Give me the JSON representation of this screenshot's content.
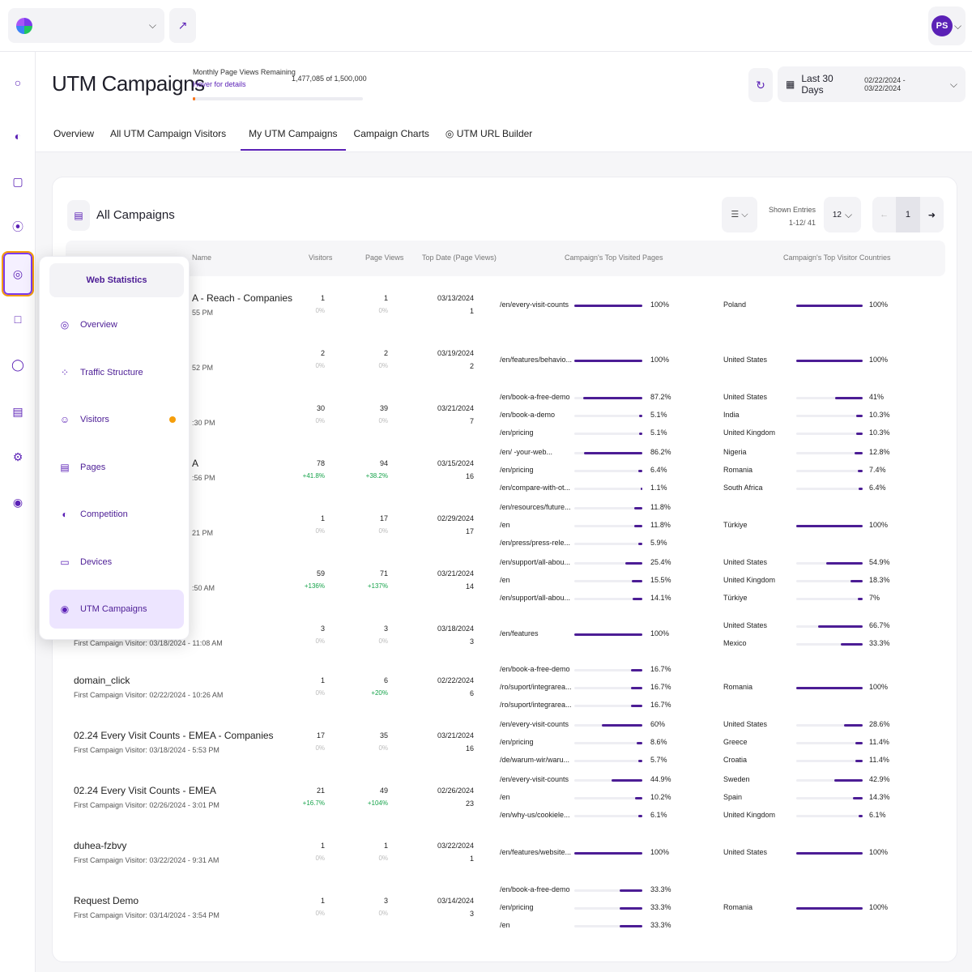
{
  "topbar": {
    "user_initials": "PS"
  },
  "header": {
    "title": "UTM Campaigns",
    "pageviews_label": "Monthly Page Views Remaining",
    "pageviews_hover": "Hover for details",
    "pageviews_value": "1,477,085 of 1,500,000",
    "pageviews_used_fraction": 0.0153,
    "date_label": "Last 30 Days",
    "date_range": "02/22/2024 - 03/22/2024"
  },
  "tabs": [
    {
      "label": "Overview"
    },
    {
      "label": "All UTM Campaign Visitors"
    },
    {
      "label": "My UTM Campaigns"
    },
    {
      "label": "Campaign Charts"
    },
    {
      "label": "UTM URL Builder"
    }
  ],
  "card": {
    "title": "All Campaigns",
    "shown_label": "Shown Entries",
    "shown_range": "1-12/ 41",
    "entries": "12",
    "page": "1"
  },
  "columns": {
    "name": "Name",
    "visitors": "Visitors",
    "pageviews": "Page Views",
    "topdate": "Top Date (Page Views)",
    "pages": "Campaign's Top Visited Pages",
    "countries": "Campaign's Top Visitor Countries"
  },
  "dropdown": {
    "header": "Web Statistics",
    "items": [
      {
        "label": "Overview",
        "icon": "target-icon"
      },
      {
        "label": "Traffic Structure",
        "icon": "network-icon"
      },
      {
        "label": "Visitors",
        "icon": "person-icon"
      },
      {
        "label": "Pages",
        "icon": "pages-icon"
      },
      {
        "label": "Competition",
        "icon": "competition-icon"
      },
      {
        "label": "Devices",
        "icon": "monitor-icon"
      },
      {
        "label": "UTM Campaigns",
        "icon": "utm-icon"
      }
    ]
  },
  "rows": [
    {
      "name": "A - Reach - Companies",
      "first": "55 PM",
      "visitors": "1",
      "v_change": "0%",
      "v_pos": false,
      "pageviews": "1",
      "p_change": "0%",
      "p_pos": false,
      "top_date": "03/13/2024",
      "top_value": "1",
      "pages": [
        {
          "label": "/en/every-visit-counts",
          "pct": "100%",
          "value": 100
        }
      ],
      "countries": [
        {
          "label": "Poland",
          "pct": "100%",
          "value": 100
        }
      ]
    },
    {
      "name": "",
      "first": "52 PM",
      "visitors": "2",
      "v_change": "0%",
      "v_pos": false,
      "pageviews": "2",
      "p_change": "0%",
      "p_pos": false,
      "top_date": "03/19/2024",
      "top_value": "2",
      "pages": [
        {
          "label": "/en/features/behavio...",
          "pct": "100%",
          "value": 100
        }
      ],
      "countries": [
        {
          "label": "United States",
          "pct": "100%",
          "value": 100
        }
      ]
    },
    {
      "name": "",
      "first": ":30 PM",
      "visitors": "30",
      "v_change": "0%",
      "v_pos": false,
      "pageviews": "39",
      "p_change": "0%",
      "p_pos": false,
      "top_date": "03/21/2024",
      "top_value": "7",
      "pages": [
        {
          "label": "/en/book-a-free-demo",
          "pct": "87.2%",
          "value": 87.2
        },
        {
          "label": "/en/book-a-demo",
          "pct": "5.1%",
          "value": 5.1
        },
        {
          "label": "/en/pricing",
          "pct": "5.1%",
          "value": 5.1
        }
      ],
      "countries": [
        {
          "label": "United States",
          "pct": "41%",
          "value": 41
        },
        {
          "label": "India",
          "pct": "10.3%",
          "value": 10.3
        },
        {
          "label": "United Kingdom",
          "pct": "10.3%",
          "value": 10.3
        }
      ]
    },
    {
      "name": "A",
      "first": ":56 PM",
      "visitors": "78",
      "v_change": "+41.8%",
      "v_pos": true,
      "pageviews": "94",
      "p_change": "+38.2%",
      "p_pos": true,
      "top_date": "03/15/2024",
      "top_value": "16",
      "pages": [
        {
          "label": "/en/ -your-web...",
          "pct": "86.2%",
          "value": 86.2
        },
        {
          "label": "/en/pricing",
          "pct": "6.4%",
          "value": 6.4
        },
        {
          "label": "/en/compare-with-ot...",
          "pct": "1.1%",
          "value": 1.1
        }
      ],
      "countries": [
        {
          "label": "Nigeria",
          "pct": "12.8%",
          "value": 12.8
        },
        {
          "label": "Romania",
          "pct": "7.4%",
          "value": 7.4
        },
        {
          "label": "South Africa",
          "pct": "6.4%",
          "value": 6.4
        }
      ]
    },
    {
      "name": "",
      "first": "21 PM",
      "visitors": "1",
      "v_change": "0%",
      "v_pos": false,
      "pageviews": "17",
      "p_change": "0%",
      "p_pos": false,
      "top_date": "02/29/2024",
      "top_value": "17",
      "pages": [
        {
          "label": "/en/resources/future...",
          "pct": "11.8%",
          "value": 11.8
        },
        {
          "label": "/en",
          "pct": "11.8%",
          "value": 11.8
        },
        {
          "label": "/en/press/press-rele...",
          "pct": "5.9%",
          "value": 5.9
        }
      ],
      "countries": [
        {
          "label": "Türkiye",
          "pct": "100%",
          "value": 100
        }
      ]
    },
    {
      "name": "",
      "first": ":50 AM",
      "visitors": "59",
      "v_change": "+136%",
      "v_pos": true,
      "pageviews": "71",
      "p_change": "+137%",
      "p_pos": true,
      "top_date": "03/21/2024",
      "top_value": "14",
      "pages": [
        {
          "label": "/en/support/all-abou...",
          "pct": "25.4%",
          "value": 25.4
        },
        {
          "label": "/en",
          "pct": "15.5%",
          "value": 15.5
        },
        {
          "label": "/en/support/all-abou...",
          "pct": "14.1%",
          "value": 14.1
        }
      ],
      "countries": [
        {
          "label": "United States",
          "pct": "54.9%",
          "value": 54.9
        },
        {
          "label": "United Kingdom",
          "pct": "18.3%",
          "value": 18.3
        },
        {
          "label": "Türkiye",
          "pct": "7%",
          "value": 7
        }
      ]
    },
    {
      "name": "",
      "first": "First Campaign Visitor: 03/18/2024 - 11:08 AM",
      "visitors": "3",
      "v_change": "0%",
      "v_pos": false,
      "pageviews": "3",
      "p_change": "0%",
      "p_pos": false,
      "top_date": "03/18/2024",
      "top_value": "3",
      "pages": [
        {
          "label": "/en/features",
          "pct": "100%",
          "value": 100
        }
      ],
      "countries": [
        {
          "label": "United States",
          "pct": "66.7%",
          "value": 66.7
        },
        {
          "label": "Mexico",
          "pct": "33.3%",
          "value": 33.3
        }
      ]
    },
    {
      "name": "domain_click",
      "first": "First Campaign Visitor: 02/22/2024 - 10:26 AM",
      "visitors": "1",
      "v_change": "0%",
      "v_pos": false,
      "pageviews": "6",
      "p_change": "+20%",
      "p_pos": true,
      "top_date": "02/22/2024",
      "top_value": "6",
      "pages": [
        {
          "label": "/en/book-a-free-demo",
          "pct": "16.7%",
          "value": 16.7
        },
        {
          "label": "/ro/suport/integrarea...",
          "pct": "16.7%",
          "value": 16.7
        },
        {
          "label": "/ro/suport/integrarea...",
          "pct": "16.7%",
          "value": 16.7
        }
      ],
      "countries": [
        {
          "label": "Romania",
          "pct": "100%",
          "value": 100
        }
      ]
    },
    {
      "name": "02.24 Every Visit Counts - EMEA - Companies",
      "first": "First Campaign Visitor: 03/18/2024 - 5:53 PM",
      "visitors": "17",
      "v_change": "0%",
      "v_pos": false,
      "pageviews": "35",
      "p_change": "0%",
      "p_pos": false,
      "top_date": "03/21/2024",
      "top_value": "16",
      "pages": [
        {
          "label": "/en/every-visit-counts",
          "pct": "60%",
          "value": 60
        },
        {
          "label": "/en/pricing",
          "pct": "8.6%",
          "value": 8.6
        },
        {
          "label": "/de/warum-wir/waru...",
          "pct": "5.7%",
          "value": 5.7
        }
      ],
      "countries": [
        {
          "label": "United States",
          "pct": "28.6%",
          "value": 28.6
        },
        {
          "label": "Greece",
          "pct": "11.4%",
          "value": 11.4
        },
        {
          "label": "Croatia",
          "pct": "11.4%",
          "value": 11.4
        }
      ]
    },
    {
      "name": "02.24 Every Visit Counts - EMEA",
      "first": "First Campaign Visitor: 02/26/2024 - 3:01 PM",
      "visitors": "21",
      "v_change": "+16.7%",
      "v_pos": true,
      "pageviews": "49",
      "p_change": "+104%",
      "p_pos": true,
      "top_date": "02/26/2024",
      "top_value": "23",
      "pages": [
        {
          "label": "/en/every-visit-counts",
          "pct": "44.9%",
          "value": 44.9
        },
        {
          "label": "/en",
          "pct": "10.2%",
          "value": 10.2
        },
        {
          "label": "/en/why-us/cookiele...",
          "pct": "6.1%",
          "value": 6.1
        }
      ],
      "countries": [
        {
          "label": "Sweden",
          "pct": "42.9%",
          "value": 42.9
        },
        {
          "label": "Spain",
          "pct": "14.3%",
          "value": 14.3
        },
        {
          "label": "United Kingdom",
          "pct": "6.1%",
          "value": 6.1
        }
      ]
    },
    {
      "name": "duhea-fzbvy",
      "first": "First Campaign Visitor: 03/22/2024 - 9:31 AM",
      "visitors": "1",
      "v_change": "0%",
      "v_pos": false,
      "pageviews": "1",
      "p_change": "0%",
      "p_pos": false,
      "top_date": "03/22/2024",
      "top_value": "1",
      "pages": [
        {
          "label": "/en/features/website...",
          "pct": "100%",
          "value": 100
        }
      ],
      "countries": [
        {
          "label": "United States",
          "pct": "100%",
          "value": 100
        }
      ]
    },
    {
      "name": "Request Demo",
      "first": "First Campaign Visitor: 03/14/2024 - 3:54 PM",
      "visitors": "1",
      "v_change": "0%",
      "v_pos": false,
      "pageviews": "3",
      "p_change": "0%",
      "p_pos": false,
      "top_date": "03/14/2024",
      "top_value": "3",
      "pages": [
        {
          "label": "/en/book-a-free-demo",
          "pct": "33.3%",
          "value": 33.3
        },
        {
          "label": "/en/pricing",
          "pct": "33.3%",
          "value": 33.3
        },
        {
          "label": "/en",
          "pct": "33.3%",
          "value": 33.3
        }
      ],
      "countries": [
        {
          "label": "Romania",
          "pct": "100%",
          "value": 100
        }
      ]
    }
  ]
}
